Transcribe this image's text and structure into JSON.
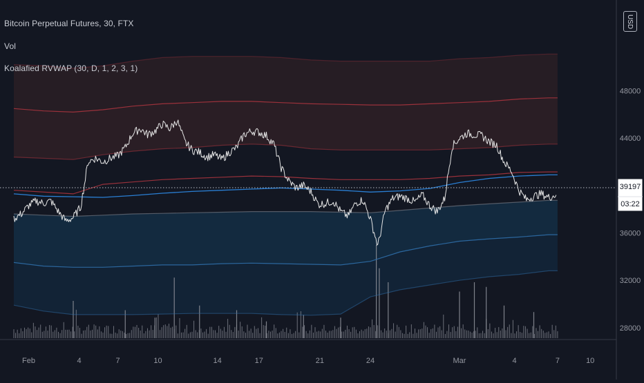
{
  "header": {
    "title": "Bitcoin Perpetual Futures, 30, FTX",
    "vol_label": "Vol",
    "indicator_label": "Koalafied RVWAP (30, D, 1, 2, 3, 1)"
  },
  "scale_button": {
    "label": "USD"
  },
  "price_axis": {
    "ticks": [
      "48000",
      "44000",
      "40000",
      "36000",
      "32000",
      "28000"
    ]
  },
  "time_axis": {
    "ticks": [
      "Feb",
      "4",
      "7",
      "10",
      "14",
      "17",
      "21",
      "24",
      "Mar",
      "4",
      "7",
      "10"
    ]
  },
  "last_price": {
    "value": "39197",
    "countdown": "03:22"
  },
  "colors": {
    "background": "#131722",
    "price_line": "#e6e6e6",
    "vwap_line": "#2a7fd4",
    "upper_band": "#a8343e",
    "lower_band": "#2f6ea8",
    "upper_fill": "#2a1e25",
    "lower_fill": "#132a3f",
    "volume": "#8a8d96"
  },
  "chart_data": {
    "type": "line",
    "title": "Bitcoin Perpetual Futures, 30, FTX",
    "xlabel": "",
    "ylabel": "",
    "ylim": [
      27000,
      51000
    ],
    "x_ticks": [
      "Feb",
      "4",
      "7",
      "10",
      "14",
      "17",
      "21",
      "24",
      "Mar",
      "4",
      "7",
      "10"
    ],
    "y_ticks": [
      48000,
      44000,
      40000,
      36000,
      32000,
      28000
    ],
    "series": [
      {
        "type": "price",
        "points": [
          [
            0,
            37200
          ],
          [
            0.5,
            37600
          ],
          [
            1,
            38300
          ],
          [
            1.5,
            38700
          ],
          [
            2,
            38500
          ],
          [
            2.5,
            38700
          ],
          [
            3,
            37800
          ],
          [
            3.5,
            37000
          ],
          [
            4,
            37300
          ],
          [
            4.5,
            38200
          ],
          [
            5,
            42000
          ],
          [
            5.5,
            42300
          ],
          [
            6,
            42000
          ],
          [
            6.5,
            42300
          ],
          [
            7,
            42500
          ],
          [
            7.5,
            43200
          ],
          [
            8,
            44400
          ],
          [
            8.5,
            44800
          ],
          [
            9,
            44300
          ],
          [
            9.5,
            44600
          ],
          [
            10,
            45200
          ],
          [
            10.5,
            44800
          ],
          [
            11,
            45500
          ],
          [
            11.5,
            43700
          ],
          [
            12,
            43000
          ],
          [
            12.5,
            42800
          ],
          [
            13,
            42400
          ],
          [
            13.5,
            42600
          ],
          [
            14,
            42200
          ],
          [
            14.5,
            42800
          ],
          [
            15,
            43200
          ],
          [
            15.5,
            44300
          ],
          [
            16,
            44600
          ],
          [
            16.5,
            44500
          ],
          [
            17,
            44200
          ],
          [
            17.5,
            43500
          ],
          [
            18,
            41500
          ],
          [
            18.5,
            40400
          ],
          [
            19,
            39800
          ],
          [
            19.5,
            40000
          ],
          [
            20,
            39500
          ],
          [
            20.5,
            38400
          ],
          [
            21,
            38500
          ],
          [
            21.5,
            38700
          ],
          [
            22,
            37800
          ],
          [
            22.5,
            37400
          ],
          [
            23,
            38500
          ],
          [
            23.5,
            38800
          ],
          [
            24,
            37200
          ],
          [
            24.5,
            34900
          ],
          [
            25,
            37900
          ],
          [
            25.5,
            38900
          ],
          [
            26,
            39100
          ],
          [
            26.5,
            38900
          ],
          [
            27,
            38600
          ],
          [
            27.5,
            39200
          ],
          [
            28,
            38300
          ],
          [
            28.5,
            37800
          ],
          [
            29,
            38900
          ],
          [
            29.5,
            43300
          ],
          [
            30,
            44000
          ],
          [
            30.5,
            44400
          ],
          [
            31,
            44300
          ],
          [
            31.5,
            44200
          ],
          [
            32,
            43700
          ],
          [
            32.5,
            43400
          ],
          [
            33,
            42000
          ],
          [
            33.5,
            41200
          ],
          [
            34,
            39600
          ],
          [
            34.5,
            38800
          ],
          [
            35,
            39100
          ],
          [
            35.5,
            39300
          ],
          [
            36,
            39000
          ],
          [
            36.5,
            39200
          ]
        ]
      },
      {
        "type": "vwap",
        "points": [
          [
            0,
            39300
          ],
          [
            2,
            39100
          ],
          [
            4,
            39050
          ],
          [
            6,
            39000
          ],
          [
            8,
            39150
          ],
          [
            10,
            39350
          ],
          [
            12,
            39500
          ],
          [
            14,
            39600
          ],
          [
            16,
            39700
          ],
          [
            18,
            39800
          ],
          [
            20,
            39700
          ],
          [
            22,
            39600
          ],
          [
            24,
            39450
          ],
          [
            26,
            39550
          ],
          [
            28,
            39750
          ],
          [
            30,
            40250
          ],
          [
            32,
            40600
          ],
          [
            34,
            40800
          ],
          [
            36,
            40900
          ],
          [
            36.6,
            40900
          ]
        ]
      },
      {
        "type": "upper_band_1",
        "points": [
          [
            0,
            39600
          ],
          [
            4,
            39300
          ],
          [
            6,
            40100
          ],
          [
            8,
            40300
          ],
          [
            10,
            40500
          ],
          [
            12,
            40600
          ],
          [
            14,
            40700
          ],
          [
            16,
            40800
          ],
          [
            18,
            40750
          ],
          [
            20,
            40600
          ],
          [
            22,
            40500
          ],
          [
            24,
            40500
          ],
          [
            26,
            40500
          ],
          [
            28,
            40600
          ],
          [
            30,
            40800
          ],
          [
            32,
            40900
          ],
          [
            34,
            41100
          ],
          [
            36,
            41150
          ],
          [
            36.6,
            41150
          ]
        ]
      },
      {
        "type": "upper_band_2",
        "points": [
          [
            0,
            46500
          ],
          [
            2,
            46300
          ],
          [
            4,
            46200
          ],
          [
            6,
            46400
          ],
          [
            8,
            46700
          ],
          [
            10,
            46900
          ],
          [
            12,
            47000
          ],
          [
            14,
            47100
          ],
          [
            16,
            47100
          ],
          [
            18,
            47000
          ],
          [
            20,
            46900
          ],
          [
            22,
            46850
          ],
          [
            24,
            46800
          ],
          [
            26,
            46800
          ],
          [
            28,
            46900
          ],
          [
            30,
            47000
          ],
          [
            32,
            47100
          ],
          [
            34,
            47300
          ],
          [
            36,
            47400
          ],
          [
            36.6,
            47400
          ]
        ]
      },
      {
        "type": "upper_band_3",
        "points": [
          [
            0,
            50200
          ],
          [
            2,
            50100
          ],
          [
            4,
            49900
          ],
          [
            6,
            50100
          ],
          [
            8,
            50500
          ],
          [
            10,
            50800
          ],
          [
            12,
            50900
          ],
          [
            14,
            50900
          ],
          [
            16,
            50900
          ],
          [
            18,
            50800
          ],
          [
            20,
            50600
          ],
          [
            22,
            50500
          ],
          [
            24,
            50500
          ],
          [
            26,
            50500
          ],
          [
            28,
            50500
          ],
          [
            30,
            50700
          ],
          [
            32,
            50800
          ],
          [
            34,
            51000
          ],
          [
            36,
            51100
          ],
          [
            36.6,
            51100
          ]
        ]
      },
      {
        "type": "lower_band_0",
        "points": [
          [
            0,
            42400
          ],
          [
            2,
            42300
          ],
          [
            4,
            42200
          ],
          [
            6,
            42600
          ],
          [
            8,
            42900
          ],
          [
            10,
            43100
          ],
          [
            12,
            43200
          ],
          [
            14,
            43400
          ],
          [
            16,
            43500
          ],
          [
            18,
            43400
          ],
          [
            20,
            43100
          ],
          [
            22,
            43000
          ],
          [
            24,
            43000
          ],
          [
            26,
            43000
          ],
          [
            28,
            43000
          ],
          [
            30,
            43100
          ],
          [
            32,
            43200
          ],
          [
            34,
            43400
          ],
          [
            36,
            43500
          ],
          [
            36.6,
            43500
          ]
        ]
      },
      {
        "type": "lower_band_1",
        "points": [
          [
            0,
            37600
          ],
          [
            2,
            37500
          ],
          [
            4,
            37400
          ],
          [
            6,
            37500
          ],
          [
            8,
            37600
          ],
          [
            10,
            37650
          ],
          [
            12,
            37700
          ],
          [
            14,
            37750
          ],
          [
            16,
            37800
          ],
          [
            18,
            37800
          ],
          [
            20,
            37800
          ],
          [
            22,
            37750
          ],
          [
            24,
            37700
          ],
          [
            26,
            37900
          ],
          [
            28,
            38100
          ],
          [
            30,
            38300
          ],
          [
            32,
            38450
          ],
          [
            34,
            38600
          ],
          [
            36,
            38750
          ],
          [
            36.6,
            38750
          ]
        ]
      },
      {
        "type": "lower_band_2",
        "points": [
          [
            0,
            33500
          ],
          [
            2,
            33200
          ],
          [
            4,
            33100
          ],
          [
            6,
            33100
          ],
          [
            8,
            33200
          ],
          [
            10,
            33300
          ],
          [
            12,
            33300
          ],
          [
            14,
            33400
          ],
          [
            16,
            33450
          ],
          [
            18,
            33400
          ],
          [
            20,
            33350
          ],
          [
            22,
            33300
          ],
          [
            24,
            33600
          ],
          [
            26,
            34400
          ],
          [
            28,
            34900
          ],
          [
            30,
            35300
          ],
          [
            32,
            35500
          ],
          [
            34,
            35650
          ],
          [
            36,
            35850
          ],
          [
            36.6,
            35850
          ]
        ]
      },
      {
        "type": "lower_band_3",
        "points": [
          [
            0,
            29900
          ],
          [
            2,
            29400
          ],
          [
            4,
            29100
          ],
          [
            6,
            29100
          ],
          [
            8,
            29100
          ],
          [
            10,
            29150
          ],
          [
            12,
            29200
          ],
          [
            14,
            29200
          ],
          [
            16,
            29200
          ],
          [
            18,
            29100
          ],
          [
            20,
            29050
          ],
          [
            22,
            29150
          ],
          [
            24,
            30600
          ],
          [
            26,
            31200
          ],
          [
            28,
            31600
          ],
          [
            30,
            32000
          ],
          [
            32,
            32300
          ],
          [
            34,
            32500
          ],
          [
            36,
            32800
          ],
          [
            36.6,
            32800
          ]
        ]
      }
    ],
    "volume": {
      "spikes": [
        [
          4,
          0.4
        ],
        [
          7.5,
          0.3
        ],
        [
          9.5,
          0.22
        ],
        [
          10.8,
          0.65
        ],
        [
          12.5,
          0.35
        ],
        [
          15,
          0.3
        ],
        [
          17,
          0.18
        ],
        [
          19.5,
          0.25
        ],
        [
          22,
          0.22
        ],
        [
          24.4,
          1.0
        ],
        [
          24.6,
          0.75
        ],
        [
          25.2,
          0.6
        ],
        [
          30,
          0.5
        ],
        [
          31,
          0.6
        ],
        [
          31.8,
          0.55
        ],
        [
          33,
          0.35
        ],
        [
          35,
          0.28
        ]
      ]
    }
  }
}
